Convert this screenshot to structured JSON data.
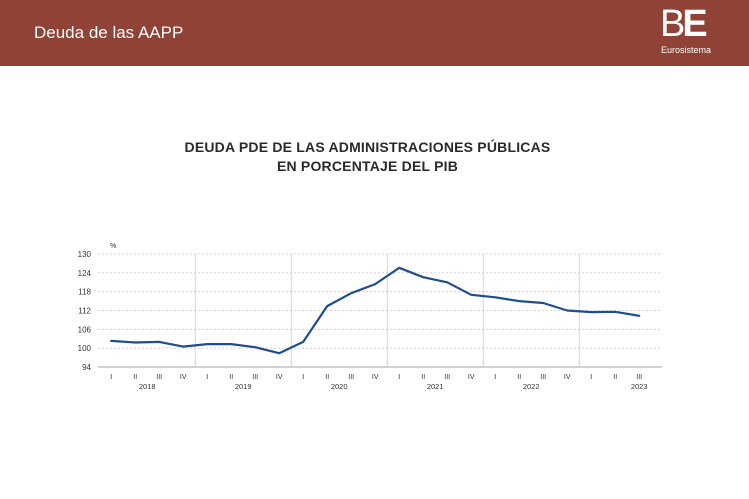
{
  "header": {
    "title": "Deuda de las AAPP",
    "logo_mark_b": "B",
    "logo_mark_e": "E",
    "logo_sub": "Eurosistema"
  },
  "colors": {
    "header_bg": "#8f4235",
    "line": "#1f4e8c",
    "grid": "#cccccc",
    "text": "#333333"
  },
  "chart_data": {
    "type": "line",
    "title_line1": "DEUDA PDE DE LAS ADMINISTRACIONES PÚBLICAS",
    "title_line2": "EN PORCENTAJE DEL PIB",
    "unit": "%",
    "ylim": [
      94,
      130
    ],
    "yticks": [
      94,
      100,
      106,
      112,
      118,
      124,
      130
    ],
    "grid": true,
    "quarters": [
      "I",
      "II",
      "III",
      "IV",
      "I",
      "II",
      "III",
      "IV",
      "I",
      "II",
      "III",
      "IV",
      "I",
      "II",
      "III",
      "IV",
      "I",
      "II",
      "III",
      "IV",
      "I",
      "II",
      "III"
    ],
    "years": [
      {
        "label": "2018",
        "start": 0,
        "count": 4
      },
      {
        "label": "2019",
        "start": 4,
        "count": 4
      },
      {
        "label": "2020",
        "start": 8,
        "count": 4
      },
      {
        "label": "2021",
        "start": 12,
        "count": 4
      },
      {
        "label": "2022",
        "start": 16,
        "count": 4
      },
      {
        "label": "2023",
        "start": 20,
        "count": 3
      }
    ],
    "series": [
      {
        "values": [
          102.3,
          101.8,
          102.0,
          100.5,
          101.3,
          101.3,
          100.3,
          98.4,
          102.0,
          113.4,
          117.5,
          120.4,
          125.6,
          122.6,
          121.0,
          117.0,
          116.2,
          115.0,
          114.4,
          112.0,
          111.5,
          111.6,
          110.3
        ]
      }
    ]
  }
}
